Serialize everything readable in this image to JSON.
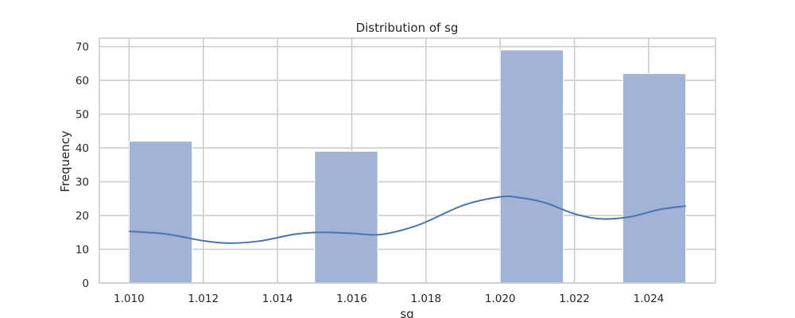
{
  "chart_data": {
    "type": "bar",
    "title": "Distribution of sg",
    "xlabel": "sg",
    "ylabel": "Frequency",
    "xlim": [
      1.0092,
      1.0258
    ],
    "ylim": [
      0,
      72.5
    ],
    "xticks": [
      "1.010",
      "1.012",
      "1.014",
      "1.016",
      "1.018",
      "1.020",
      "1.022",
      "1.024"
    ],
    "yticks": [
      "0",
      "10",
      "20",
      "30",
      "40",
      "50",
      "60",
      "70"
    ],
    "grid": true,
    "bins": [
      {
        "x0": 1.01,
        "x1": 1.0117,
        "count": 42
      },
      {
        "x0": 1.015,
        "x1": 1.0167,
        "count": 39
      },
      {
        "x0": 1.02,
        "x1": 1.0217,
        "count": 69
      },
      {
        "x0": 1.0233,
        "x1": 1.025,
        "count": 62
      }
    ],
    "kde": {
      "x": [
        1.01,
        1.011,
        1.012,
        1.0127,
        1.0135,
        1.0145,
        1.0152,
        1.016,
        1.0168,
        1.0178,
        1.019,
        1.02,
        1.0205,
        1.0212,
        1.022,
        1.0227,
        1.0235,
        1.0243,
        1.025
      ],
      "y": [
        15.3,
        14.5,
        12.5,
        11.8,
        12.4,
        14.5,
        15.0,
        14.7,
        14.4,
        17.2,
        23.0,
        25.5,
        25.3,
        23.8,
        20.5,
        19.0,
        19.6,
        21.8,
        22.8
      ]
    },
    "colors": {
      "bar": "#a2b4d6",
      "kde": "#4c72b0",
      "grid": "#cccccc",
      "frame": "#cccccc",
      "text": "#262626"
    }
  }
}
